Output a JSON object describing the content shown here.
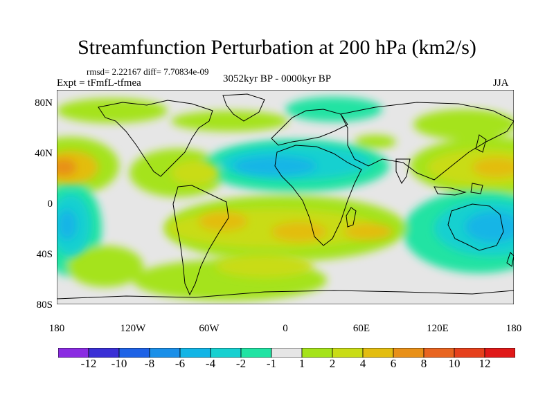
{
  "header": {
    "title": "Streamfunction Perturbation at 200 hPa (km2/s)",
    "stats": "rmsd= 2.22167 diff= 7.70834e-09",
    "experiment": "Expt = tFmfL-tfmea",
    "period": "3052kyr BP - 0000kyr BP",
    "season": "JJA"
  },
  "axes": {
    "lat_labels": [
      "80N",
      "40N",
      "0",
      "40S",
      "80S"
    ],
    "lon_labels": [
      "180",
      "120W",
      "60W",
      "0",
      "60E",
      "120E",
      "180"
    ]
  },
  "colorbar": {
    "labels": [
      "-12",
      "-10",
      "-8",
      "-6",
      "-4",
      "-2",
      "-1",
      "1",
      "2",
      "4",
      "6",
      "8",
      "10",
      "12"
    ],
    "colors": [
      "#8a2be2",
      "#3a2fd6",
      "#1e62e6",
      "#1a8fe8",
      "#12b5e6",
      "#17d0d0",
      "#20e3a3",
      "#e6e6e6",
      "#a5e31a",
      "#c9dc16",
      "#e3bd10",
      "#e89018",
      "#e86420",
      "#e6401c",
      "#e01818"
    ]
  },
  "colors": {
    "background": "#ffffff",
    "map_fill": "#e6e6e6",
    "coastline": "#000000"
  }
}
